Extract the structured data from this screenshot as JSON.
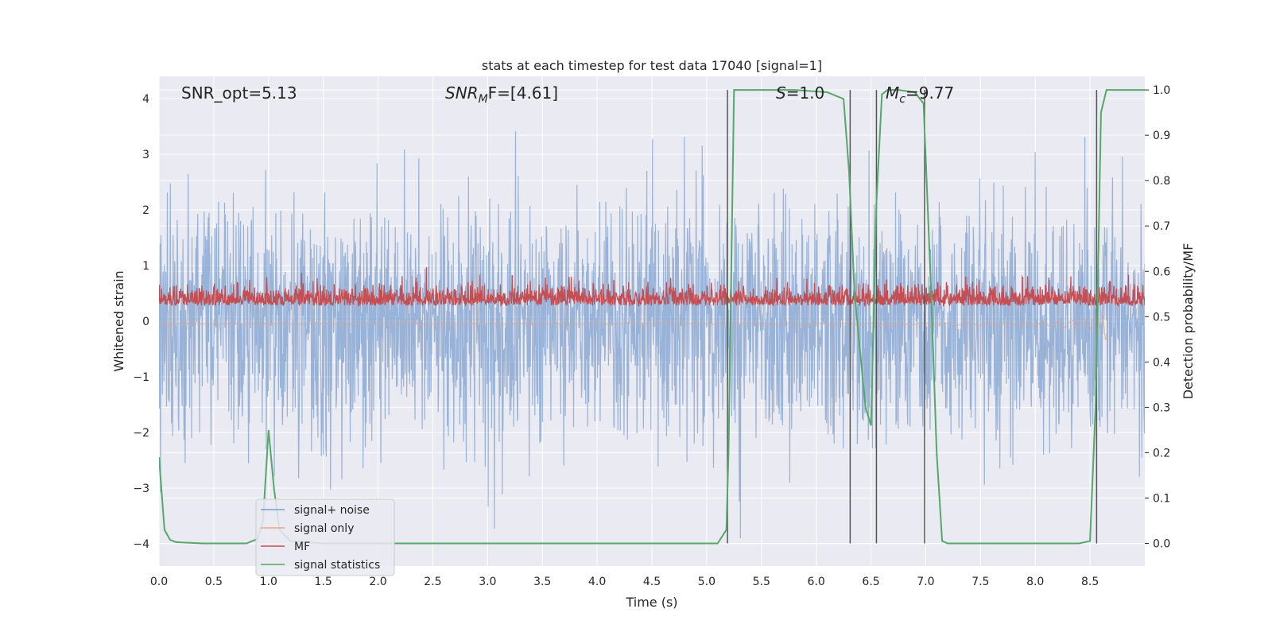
{
  "chart_data": {
    "type": "line",
    "title": "stats at each timestep for test data 17040 [signal=1]",
    "xlabel": "Time (s)",
    "ylabel_left": "Whitened strain",
    "ylabel_right": "Detection probability/MF",
    "xlim": [
      0,
      9.0
    ],
    "ylim_left": [
      -4.4,
      4.4
    ],
    "ylim_right": [
      -0.05,
      1.03
    ],
    "xticks": [
      "0.0",
      "0.5",
      "1.0",
      "1.5",
      "2.0",
      "2.5",
      "3.0",
      "3.5",
      "4.0",
      "4.5",
      "5.0",
      "5.5",
      "6.0",
      "6.5",
      "7.0",
      "7.5",
      "8.0",
      "8.5"
    ],
    "xtick_values": [
      0,
      0.5,
      1.0,
      1.5,
      2.0,
      2.5,
      3.0,
      3.5,
      4.0,
      4.5,
      5.0,
      5.5,
      6.0,
      6.5,
      7.0,
      7.5,
      8.0,
      8.5
    ],
    "yticks_left": [
      "−4",
      "−3",
      "−2",
      "−1",
      "0",
      "1",
      "2",
      "3",
      "4"
    ],
    "ytick_values_left": [
      -4,
      -3,
      -2,
      -1,
      0,
      1,
      2,
      3,
      4
    ],
    "yticks_right": [
      "0.0",
      "0.1",
      "0.2",
      "0.3",
      "0.4",
      "0.5",
      "0.6",
      "0.7",
      "0.8",
      "0.9",
      "1.0"
    ],
    "ytick_values_right": [
      0,
      0.1,
      0.2,
      0.3,
      0.4,
      0.5,
      0.6,
      0.7,
      0.8,
      0.9,
      1.0
    ],
    "grid": true,
    "annotations": {
      "snr_opt": "SNR_opt=5.13",
      "snr_mf_main": "SNR",
      "snr_mf_sub": "M",
      "snr_mf_rest": "F=[4.61]",
      "s_main": "S",
      "s_rest": "=1.0",
      "mc_main": "M",
      "mc_sub": "c",
      "mc_rest": "=9.77"
    },
    "legend": {
      "placement": "lower-left",
      "entries": [
        {
          "label": "signal+ noise",
          "color": "#7a9ccc"
        },
        {
          "label": "signal only",
          "color": "#f0a37c"
        },
        {
          "label": "MF",
          "color": "#c44e52"
        },
        {
          "label": "signal statistics",
          "color": "#55a868"
        }
      ]
    },
    "series": [
      {
        "name": "signal statistics",
        "axis": "right",
        "color": "#55a868",
        "x": [
          0.0,
          0.05,
          0.1,
          0.15,
          0.2,
          0.4,
          0.6,
          0.8,
          0.9,
          0.95,
          1.0,
          1.05,
          1.1,
          1.2,
          1.5,
          2.0,
          2.5,
          3.0,
          3.5,
          4.0,
          4.5,
          5.0,
          5.1,
          5.18,
          5.2,
          5.25,
          5.3,
          5.5,
          5.8,
          6.1,
          6.25,
          6.3,
          6.35,
          6.45,
          6.5,
          6.55,
          6.6,
          6.65,
          6.75,
          6.9,
          6.98,
          7.05,
          7.1,
          7.15,
          7.2,
          7.3,
          7.5,
          8.0,
          8.4,
          8.5,
          8.55,
          8.6,
          8.65,
          8.7,
          8.8,
          9.0
        ],
        "y": [
          0.19,
          0.03,
          0.008,
          0.003,
          0.002,
          0.0,
          0.0,
          0.0,
          0.01,
          0.05,
          0.25,
          0.12,
          0.03,
          0.005,
          0.0,
          0.0,
          0.0,
          0.0,
          0.0,
          0.0,
          0.0,
          0.0,
          0.0,
          0.03,
          0.2,
          1.0,
          1.0,
          1.0,
          1.0,
          0.995,
          0.98,
          0.82,
          0.55,
          0.3,
          0.26,
          0.75,
          0.99,
          1.0,
          1.0,
          0.995,
          0.97,
          0.55,
          0.2,
          0.005,
          0.0,
          0.0,
          0.0,
          0.0,
          0.0,
          0.005,
          0.3,
          0.95,
          1.0,
          1.0,
          1.0,
          1.0
        ]
      }
    ],
    "vertical_lines_x": [
      5.19,
      6.31,
      6.55,
      6.99,
      8.56
    ]
  }
}
